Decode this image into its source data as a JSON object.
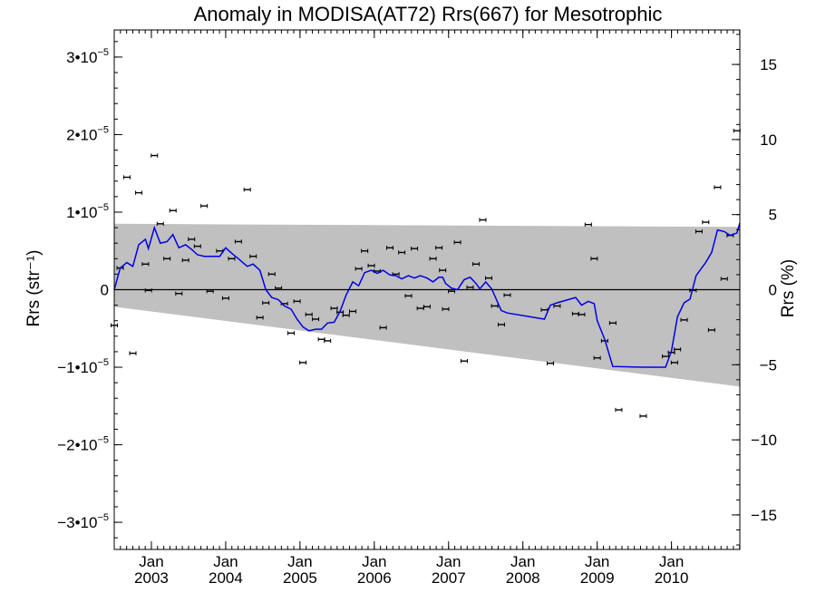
{
  "chart_data": {
    "type": "scatter",
    "title": "Anomaly in MODISA(AT72) Rrs(667) for Mesotrophic",
    "ylabel_left": "Rrs (str⁻¹)",
    "ylabel_right": "Rrs (%)",
    "xlim": [
      2002.5,
      2010.92
    ],
    "ylim": [
      -3.35e-05,
      3.35e-05
    ],
    "ylim_right_percent": [
      -17.3,
      17.3
    ],
    "x_ticks": [
      {
        "x": 2003.0,
        "top": "Jan",
        "bottom": "2003"
      },
      {
        "x": 2004.0,
        "top": "Jan",
        "bottom": "2004"
      },
      {
        "x": 2005.0,
        "top": "Jan",
        "bottom": "2005"
      },
      {
        "x": 2006.0,
        "top": "Jan",
        "bottom": "2006"
      },
      {
        "x": 2007.0,
        "top": "Jan",
        "bottom": "2007"
      },
      {
        "x": 2008.0,
        "top": "Jan",
        "bottom": "2008"
      },
      {
        "x": 2009.0,
        "top": "Jan",
        "bottom": "2009"
      },
      {
        "x": 2010.0,
        "top": "Jan",
        "bottom": "2010"
      }
    ],
    "y_ticks_left": [
      {
        "value": 3e-05,
        "mant": "3•10",
        "exp": "−5"
      },
      {
        "value": 2e-05,
        "mant": "2•10",
        "exp": "−5"
      },
      {
        "value": 1e-05,
        "mant": "1•10",
        "exp": "−5"
      },
      {
        "value": 0,
        "mant": "0",
        "exp": ""
      },
      {
        "value": -1e-05,
        "mant": "−1•10",
        "exp": "−5"
      },
      {
        "value": -2e-05,
        "mant": "−2•10",
        "exp": "−5"
      },
      {
        "value": -3e-05,
        "mant": "−3•10",
        "exp": "−5"
      }
    ],
    "y_ticks_right": [
      {
        "value": 15,
        "label": "15"
      },
      {
        "value": 10,
        "label": "10"
      },
      {
        "value": 5,
        "label": "5"
      },
      {
        "value": 0,
        "label": "0"
      },
      {
        "value": -5,
        "label": "−5"
      },
      {
        "value": -10,
        "label": "−10"
      },
      {
        "value": -15,
        "label": "−15"
      }
    ],
    "band": {
      "upper": [
        [
          2002.5,
          8.5e-06
        ],
        [
          2010.92,
          8.1e-06
        ]
      ],
      "lower": [
        [
          2002.5,
          -2.2e-06
        ],
        [
          2010.92,
          -1.25e-05
        ]
      ]
    },
    "points": [
      [
        2002.5,
        -4.6e-06
      ],
      [
        2002.58,
        2.8e-06
      ],
      [
        2002.67,
        1.45e-05
      ],
      [
        2002.75,
        -8.2e-06
      ],
      [
        2002.83,
        1.25e-05
      ],
      [
        2002.92,
        3.3e-06
      ],
      [
        2002.96,
        -1e-07
      ],
      [
        2003.04,
        1.73e-05
      ],
      [
        2003.12,
        8.5e-06
      ],
      [
        2003.21,
        4e-06
      ],
      [
        2003.29,
        1.02e-05
      ],
      [
        2003.37,
        -5e-07
      ],
      [
        2003.46,
        3.8e-06
      ],
      [
        2003.54,
        6.5e-06
      ],
      [
        2003.62,
        5.6e-06
      ],
      [
        2003.71,
        1.08e-05
      ],
      [
        2003.79,
        -2e-07
      ],
      [
        2003.92,
        5e-06
      ],
      [
        2004.0,
        -1.1e-06
      ],
      [
        2004.08,
        4e-06
      ],
      [
        2004.17,
        6.2e-06
      ],
      [
        2004.29,
        1.29e-05
      ],
      [
        2004.37,
        4.3e-06
      ],
      [
        2004.46,
        -3.6e-06
      ],
      [
        2004.54,
        -1.7e-06
      ],
      [
        2004.62,
        2e-06
      ],
      [
        2004.71,
        2e-07
      ],
      [
        2004.79,
        -1.8e-06
      ],
      [
        2004.88,
        -5.6e-06
      ],
      [
        2004.96,
        -1.5e-06
      ],
      [
        2005.04,
        -9.4e-06
      ],
      [
        2005.12,
        -3.2e-06
      ],
      [
        2005.21,
        -3.8e-06
      ],
      [
        2005.29,
        -6.4e-06
      ],
      [
        2005.37,
        -6.6e-06
      ],
      [
        2005.46,
        -2.4e-06
      ],
      [
        2005.54,
        -2.9e-06
      ],
      [
        2005.62,
        -3.3e-06
      ],
      [
        2005.71,
        -2.8e-06
      ],
      [
        2005.79,
        2.7e-06
      ],
      [
        2005.87,
        5e-06
      ],
      [
        2005.96,
        3.1e-06
      ],
      [
        2006.04,
        2.4e-06
      ],
      [
        2006.12,
        -4.9e-06
      ],
      [
        2006.21,
        5.4e-06
      ],
      [
        2006.29,
        2e-06
      ],
      [
        2006.37,
        4.8e-06
      ],
      [
        2006.46,
        -8e-07
      ],
      [
        2006.54,
        5.3e-06
      ],
      [
        2006.62,
        -2.4e-06
      ],
      [
        2006.71,
        -2.2e-06
      ],
      [
        2006.79,
        4e-06
      ],
      [
        2006.87,
        5.4e-06
      ],
      [
        2006.92,
        2.5e-06
      ],
      [
        2006.96,
        -2.5e-06
      ],
      [
        2007.04,
        -2e-07
      ],
      [
        2007.12,
        6.1e-06
      ],
      [
        2007.21,
        -9.2e-06
      ],
      [
        2007.29,
        3e-07
      ],
      [
        2007.37,
        3.3e-06
      ],
      [
        2007.46,
        9e-06
      ],
      [
        2007.54,
        1.5e-06
      ],
      [
        2007.62,
        -2.1e-06
      ],
      [
        2007.71,
        -4.5e-06
      ],
      [
        2007.79,
        -7e-07
      ],
      [
        2008.29,
        -2.6e-06
      ],
      [
        2008.37,
        -9.5e-06
      ],
      [
        2008.46,
        -2.1e-06
      ],
      [
        2008.71,
        -3.1e-06
      ],
      [
        2008.79,
        -3.2e-06
      ],
      [
        2008.88,
        8.4e-06
      ],
      [
        2008.96,
        4e-06
      ],
      [
        2009.0,
        -8.8e-06
      ],
      [
        2009.1,
        -6.6e-06
      ],
      [
        2009.21,
        -4.3e-06
      ],
      [
        2009.29,
        -1.55e-05
      ],
      [
        2009.62,
        -1.63e-05
      ],
      [
        2009.92,
        -8.6e-06
      ],
      [
        2010.0,
        -8.1e-06
      ],
      [
        2010.04,
        -9.4e-06
      ],
      [
        2010.08,
        -7.7e-06
      ],
      [
        2010.17,
        -3.9e-06
      ],
      [
        2010.29,
        -1e-07
      ],
      [
        2010.37,
        7.5e-06
      ],
      [
        2010.46,
        8.7e-06
      ],
      [
        2010.54,
        -5.2e-06
      ],
      [
        2010.62,
        1.32e-05
      ],
      [
        2010.71,
        1.4e-06
      ],
      [
        2010.79,
        7e-06
      ],
      [
        2010.88,
        2.05e-05
      ]
    ],
    "line": [
      [
        2002.5,
        0
      ],
      [
        2002.58,
        2.8e-06
      ],
      [
        2002.67,
        3.5e-06
      ],
      [
        2002.75,
        3e-06
      ],
      [
        2002.83,
        5.8e-06
      ],
      [
        2002.92,
        6.5e-06
      ],
      [
        2002.96,
        5.3e-06
      ],
      [
        2003.04,
        8e-06
      ],
      [
        2003.12,
        6e-06
      ],
      [
        2003.21,
        6.2e-06
      ],
      [
        2003.29,
        7.1e-06
      ],
      [
        2003.37,
        5.4e-06
      ],
      [
        2003.46,
        5.8e-06
      ],
      [
        2003.54,
        5.2e-06
      ],
      [
        2003.62,
        4.5e-06
      ],
      [
        2003.71,
        4.3e-06
      ],
      [
        2003.79,
        4.3e-06
      ],
      [
        2003.92,
        4.3e-06
      ],
      [
        2004.0,
        5.4e-06
      ],
      [
        2004.08,
        4.7e-06
      ],
      [
        2004.17,
        4e-06
      ],
      [
        2004.29,
        3e-06
      ],
      [
        2004.37,
        3.3e-06
      ],
      [
        2004.46,
        2.5e-06
      ],
      [
        2004.54,
        0
      ],
      [
        2004.62,
        -1e-06
      ],
      [
        2004.71,
        -1.3e-06
      ],
      [
        2004.79,
        -2.1e-06
      ],
      [
        2004.88,
        -2.5e-06
      ],
      [
        2004.96,
        -3.8e-06
      ],
      [
        2005.04,
        -4.8e-06
      ],
      [
        2005.12,
        -5.3e-06
      ],
      [
        2005.21,
        -5.1e-06
      ],
      [
        2005.29,
        -5.1e-06
      ],
      [
        2005.37,
        -4.3e-06
      ],
      [
        2005.46,
        -4.2e-06
      ],
      [
        2005.54,
        -2.8e-06
      ],
      [
        2005.62,
        -7e-07
      ],
      [
        2005.71,
        1e-06
      ],
      [
        2005.79,
        5e-07
      ],
      [
        2005.87,
        2.2e-06
      ],
      [
        2005.96,
        2.5e-06
      ],
      [
        2006.04,
        2.1e-06
      ],
      [
        2006.12,
        2.5e-06
      ],
      [
        2006.21,
        1.9e-06
      ],
      [
        2006.29,
        1.8e-06
      ],
      [
        2006.37,
        1.4e-06
      ],
      [
        2006.46,
        1.8e-06
      ],
      [
        2006.54,
        1.5e-06
      ],
      [
        2006.62,
        1.8e-06
      ],
      [
        2006.71,
        1.5e-06
      ],
      [
        2006.79,
        1e-06
      ],
      [
        2006.87,
        1.6e-06
      ],
      [
        2006.92,
        1.6e-06
      ],
      [
        2006.96,
        8e-07
      ],
      [
        2007.04,
        2e-07
      ],
      [
        2007.12,
        0
      ],
      [
        2007.21,
        1.3e-06
      ],
      [
        2007.29,
        1.6e-06
      ],
      [
        2007.37,
        8e-07
      ],
      [
        2007.42,
        1e-07
      ],
      [
        2007.5,
        1e-06
      ],
      [
        2007.58,
        1e-07
      ],
      [
        2007.71,
        -2.7e-06
      ],
      [
        2007.79,
        -3e-06
      ],
      [
        2008.29,
        -3.8e-06
      ],
      [
        2008.37,
        -2e-06
      ],
      [
        2008.46,
        -1.7e-06
      ],
      [
        2008.71,
        -1e-06
      ],
      [
        2008.79,
        -2e-06
      ],
      [
        2008.88,
        -1.5e-06
      ],
      [
        2008.96,
        -1.8e-06
      ],
      [
        2009.0,
        -4e-06
      ],
      [
        2009.1,
        -6.4e-06
      ],
      [
        2009.21,
        -9.9e-06
      ],
      [
        2009.62,
        -1e-05
      ],
      [
        2009.92,
        -1e-05
      ],
      [
        2010.0,
        -7.9e-06
      ],
      [
        2010.08,
        -3.5e-06
      ],
      [
        2010.17,
        -1.7e-06
      ],
      [
        2010.25,
        -1.2e-06
      ],
      [
        2010.33,
        1.8e-06
      ],
      [
        2010.46,
        3.5e-06
      ],
      [
        2010.54,
        4.8e-06
      ],
      [
        2010.62,
        7.7e-06
      ],
      [
        2010.71,
        7.5e-06
      ],
      [
        2010.79,
        7e-06
      ],
      [
        2010.88,
        7.3e-06
      ],
      [
        2010.92,
        8.6e-06
      ]
    ],
    "colors": {
      "band": "#c0c0c0",
      "line": "#0000e6",
      "points": "#000000"
    }
  }
}
